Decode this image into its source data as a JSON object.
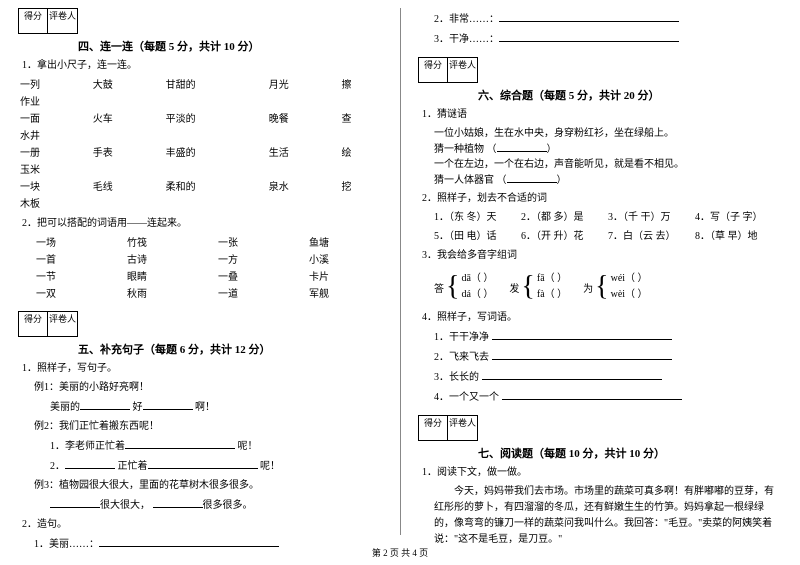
{
  "score_labels": {
    "score": "得分",
    "reviewer": "评卷人"
  },
  "left": {
    "sec4": {
      "title": "四、连一连（每题 5 分，共计 10 分）",
      "q1_intro": "1．拿出小尺子，连一连。",
      "rows": [
        [
          "一列",
          "大鼓",
          "甘甜的",
          "月光",
          "擦"
        ],
        [
          "作业",
          "",
          "",
          "",
          ""
        ],
        [
          "一面",
          "火车",
          "平淡的",
          "晚餐",
          "查"
        ],
        [
          "水井",
          "",
          "",
          "",
          ""
        ],
        [
          "一册",
          "手表",
          "丰盛的",
          "生活",
          "绘"
        ],
        [
          "玉米",
          "",
          "",
          "",
          ""
        ],
        [
          "一块",
          "毛线",
          "柔和的",
          "泉水",
          "挖"
        ],
        [
          "木板",
          "",
          "",
          "",
          ""
        ]
      ],
      "q2_intro": "2．把可以搭配的词语用——连起来。",
      "pairs": [
        [
          "一场",
          "竹筏",
          "一张",
          "鱼塘"
        ],
        [
          "一首",
          "古诗",
          "一方",
          "小溪"
        ],
        [
          "一节",
          "眼睛",
          "一叠",
          "卡片"
        ],
        [
          "一双",
          "秋雨",
          "一道",
          "军舰"
        ]
      ]
    },
    "sec5": {
      "title": "五、补充句子（每题 6 分，共计 12 分）",
      "q1": "1．照样子，写句子。",
      "ex1": "例1：美丽的小路好亮啊！",
      "ex1_fill_a": "美丽的",
      "ex1_fill_b": "好",
      "ex1_fill_c": "啊！",
      "ex2": "例2：我们正忙着搬东西呢！",
      "ex2_line1": "1．李老师正忙着",
      "ex2_line1_end": "呢！",
      "ex2_line2_a": "2．",
      "ex2_line2_b": "正忙着",
      "ex2_line2_end": "呢！",
      "ex3": "例3：植物园很大很大，里面的花草树木很多很多。",
      "ex3_a": "很大很大，",
      "ex3_b": "很多很多。",
      "q2": "2．造句。",
      "q2_item": "1．美丽……："
    }
  },
  "right": {
    "top_items": [
      "2．非常……：",
      "3．干净……："
    ],
    "sec6": {
      "title": "六、综合题（每题 5 分，共计 20 分）",
      "q1": "1．猜谜语",
      "riddles": [
        "一位小姑娘，生在水中央，身穿粉红衫，坐在绿船上。",
        "猜一种植物",
        "一个在左边，一个在右边，声音能听见，就是看不相见。",
        "猜一人体器官"
      ],
      "q2": "2．照样子，划去不合适的词",
      "q2_row1": [
        "1．（东 冬）天",
        "2．（都 多）是",
        "3．（千 干）万",
        "4．写（子 字）"
      ],
      "q2_row2": [
        "5．（田 电）话",
        "6．（开 升）花",
        "7．白（云 去）",
        "8．（草 早）地"
      ],
      "q3": "3．我会给多音字组词",
      "brace_groups": [
        {
          "char": "答",
          "items": [
            "dā（        ）",
            "dá（        ）"
          ]
        },
        {
          "char": "发",
          "items": [
            "fā（        ）",
            "fà（        ）"
          ]
        },
        {
          "char": "为",
          "items": [
            "wéi（        ）",
            "wèi（        ）"
          ]
        }
      ],
      "q4": "4．照样子，写词语。",
      "q4_items": [
        "1．干干净净",
        "2．飞来飞去",
        "3．长长的",
        "4．一个又一个"
      ]
    },
    "sec7": {
      "title": "七、阅读题（每题 10 分，共计 10 分）",
      "q1": "1．阅读下文，做一做。",
      "passage": "今天，妈妈带我们去市场。市场里的蔬菜可真多啊！有胖嘟嘟的豆芽，有红彤彤的萝卜，有四溜溜的冬瓜，还有鲜嫩生生的竹笋。妈妈拿起一根绿绿的，像弯弯的镰刀一样的蔬菜问我叫什么。我回答：\"毛豆。\"卖菜的阿姨笑着说：\"这不是毛豆，是刀豆。\""
    }
  },
  "footer": "第 2 页 共 4 页"
}
